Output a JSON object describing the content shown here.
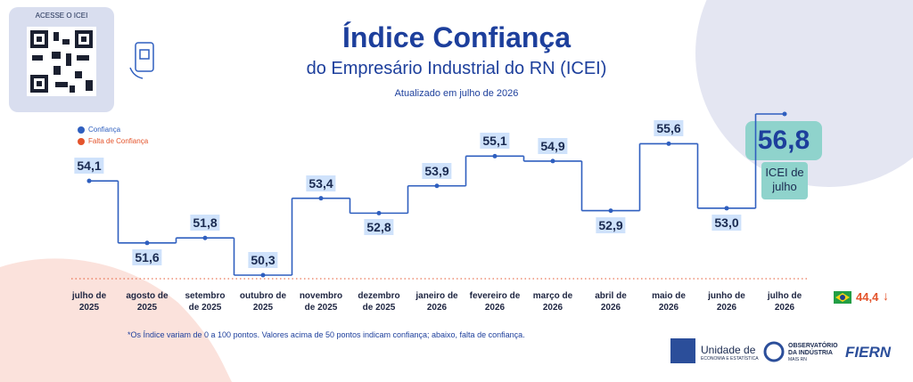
{
  "chart_data": {
    "type": "step",
    "title": "Índice Confiança",
    "subtitle": "do Empresário Industrial do RN (ICEI)",
    "updated": "Atualizado em julho de 2026",
    "qr_label": "ACESSE O ICEI",
    "legend": [
      "Confiança",
      "Falta de Confiança"
    ],
    "categories": [
      "julho de\n2025",
      "agosto de\n2025",
      "setembro\nde 2025",
      "outubro de\n2025",
      "novembro\nde 2025",
      "dezembro\nde 2025",
      "janeiro de\n2026",
      "fevereiro de\n2026",
      "março de\n2026",
      "abril de\n2026",
      "maio de\n2026",
      "junho de\n2026",
      "julho de\n2026"
    ],
    "values": [
      54.1,
      51.6,
      51.8,
      50.3,
      53.4,
      52.8,
      53.9,
      55.1,
      54.9,
      52.9,
      55.6,
      53.0,
      56.8
    ],
    "value_labels": [
      "54,1",
      "51,6",
      "51,8",
      "50,3",
      "53,4",
      "52,8",
      "53,9",
      "55,1",
      "54,9",
      "52,9",
      "55,6",
      "53,0",
      "56,8"
    ],
    "color": "#2f5fbf",
    "highlight_label": "ICEI de julho",
    "brazil_value": 44.4,
    "brazil_value_label": "44,4",
    "footnote": "*Os Índice variam de 0 a 100 pontos. Valores acima de 50 pontos indicam confiança; abaixo, falta de confiança.",
    "logos": [
      "Unidade de",
      "ECONOMIA E ESTATÍSTICA",
      "OBSERVATÓRIO",
      "DA INDÚSTRIA",
      "MAIS RN",
      "FIERN"
    ]
  }
}
